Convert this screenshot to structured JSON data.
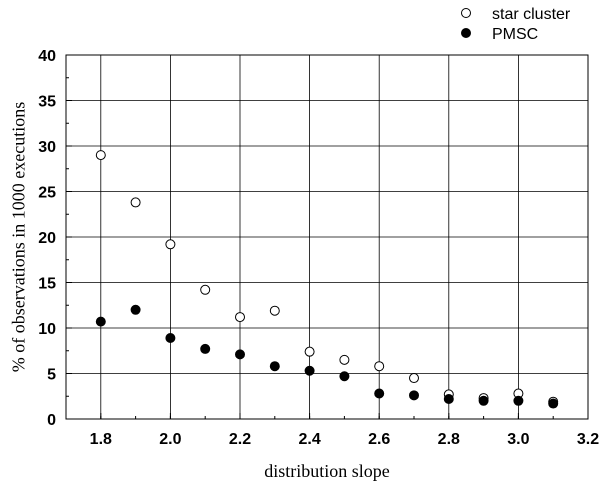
{
  "chart_data": {
    "type": "scatter",
    "xlabel": "distribution slope",
    "ylabel": "% of observations in 1000 executions",
    "xlim": [
      1.7,
      3.2
    ],
    "ylim": [
      0,
      40
    ],
    "xticks": [
      "1.8",
      "2.0",
      "2.2",
      "2.4",
      "2.6",
      "2.8",
      "3.0",
      "3.2"
    ],
    "yticks": [
      "0",
      "5",
      "10",
      "15",
      "20",
      "25",
      "30",
      "35",
      "40"
    ],
    "grid": true,
    "legend_position": "top-right, above plot",
    "series": [
      {
        "name": "star cluster",
        "marker": "open-circle",
        "x": [
          1.8,
          1.9,
          2.0,
          2.1,
          2.2,
          2.3,
          2.4,
          2.5,
          2.6,
          2.7,
          2.8,
          2.9,
          3.0,
          3.1
        ],
        "y": [
          29.0,
          23.8,
          19.2,
          14.2,
          11.2,
          11.9,
          7.4,
          6.5,
          5.8,
          4.5,
          2.7,
          2.3,
          2.8,
          1.9
        ]
      },
      {
        "name": "PMSC",
        "marker": "filled-circle",
        "x": [
          1.8,
          1.9,
          2.0,
          2.1,
          2.2,
          2.3,
          2.4,
          2.5,
          2.6,
          2.7,
          2.8,
          2.9,
          3.0,
          3.1
        ],
        "y": [
          10.7,
          12.0,
          8.9,
          7.7,
          7.1,
          5.8,
          5.3,
          4.7,
          2.8,
          2.6,
          2.2,
          2.0,
          2.0,
          1.7
        ]
      }
    ]
  }
}
